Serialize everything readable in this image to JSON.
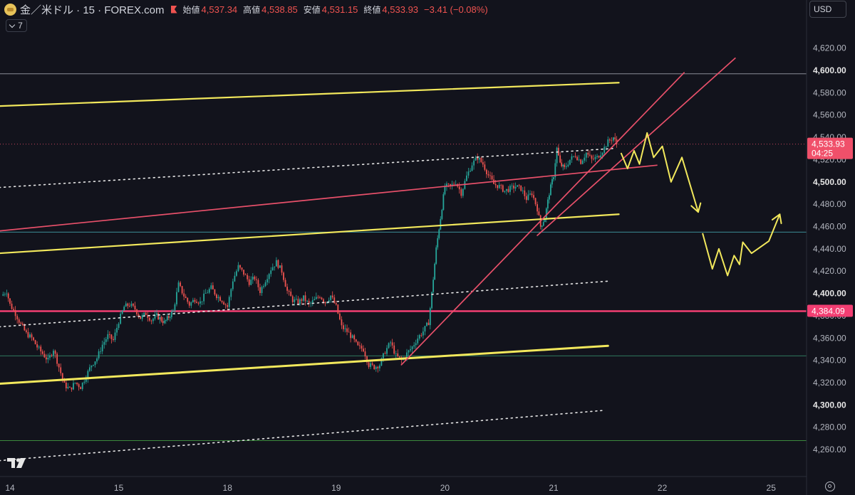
{
  "header": {
    "symbol": "金／米ドル · 15 · FOREX.com",
    "open_label": "始値",
    "open": "4,537.34",
    "high_label": "高値",
    "high": "4,538.85",
    "low_label": "安値",
    "low": "4,531.15",
    "close_label": "終値",
    "close": "4,533.93",
    "change": "−3.41 (−0.08%)"
  },
  "indicator_count": "7",
  "currency": "USD",
  "icons": {
    "logo": "gold-coin-icon",
    "flag": "flag-icon",
    "tv": "tradingview-logo-icon",
    "settings": "gear-icon",
    "collapse": "chevron-down-icon"
  },
  "colors": {
    "background": "#12131c",
    "up": "#26a69a",
    "down": "#ef5350",
    "trend_yellow": "#f2e85c",
    "trend_red": "#f0506a",
    "support_magenta": "#f23e72"
  },
  "chart_data": {
    "type": "candlestick",
    "instrument": "金／米ドル",
    "interval": "15",
    "broker": "FOREX.com",
    "ylim": [
      4246,
      4630
    ],
    "y_ticks": [
      "4,260.00",
      "4,280.00",
      "4,300.00",
      "4,320.00",
      "4,340.00",
      "4,360.00",
      "4,380.00",
      "4,400.00",
      "4,420.00",
      "4,440.00",
      "4,460.00",
      "4,480.00",
      "4,500.00",
      "4,520.00",
      "4,540.00",
      "4,560.00",
      "4,580.00",
      "4,600.00",
      "4,620.00"
    ],
    "bold_ticks": [
      "4,300.00",
      "4,400.00",
      "4,500.00",
      "4,600.00"
    ],
    "x_ticks": [
      {
        "label": "14",
        "t": 0.0
      },
      {
        "label": "15",
        "t": 1.0
      },
      {
        "label": "18",
        "t": 2.0
      },
      {
        "label": "19",
        "t": 3.0
      },
      {
        "label": "20",
        "t": 4.0
      },
      {
        "label": "21",
        "t": 5.0
      },
      {
        "label": "22",
        "t": 6.0
      },
      {
        "label": "25",
        "t": 7.0
      }
    ],
    "price_labels": [
      {
        "text": "4,533.93",
        "sub": "04:25",
        "value": 4533.93,
        "color": "#f0506a"
      },
      {
        "text": "4,384.09",
        "value": 4384.09,
        "color": "#f23e72"
      }
    ],
    "price_path": [
      [
        -0.08,
        4398
      ],
      [
        -0.03,
        4402
      ],
      [
        0.0,
        4390
      ],
      [
        0.05,
        4382
      ],
      [
        0.1,
        4372
      ],
      [
        0.15,
        4364
      ],
      [
        0.2,
        4360
      ],
      [
        0.25,
        4352
      ],
      [
        0.3,
        4346
      ],
      [
        0.35,
        4340
      ],
      [
        0.4,
        4350
      ],
      [
        0.45,
        4334
      ],
      [
        0.5,
        4318
      ],
      [
        0.55,
        4314
      ],
      [
        0.6,
        4320
      ],
      [
        0.65,
        4316
      ],
      [
        0.7,
        4326
      ],
      [
        0.75,
        4336
      ],
      [
        0.8,
        4342
      ],
      [
        0.85,
        4354
      ],
      [
        0.9,
        4362
      ],
      [
        0.95,
        4358
      ],
      [
        1.0,
        4375
      ],
      [
        1.05,
        4388
      ],
      [
        1.1,
        4390
      ],
      [
        1.15,
        4386
      ],
      [
        1.2,
        4378
      ],
      [
        1.25,
        4382
      ],
      [
        1.3,
        4376
      ],
      [
        1.35,
        4380
      ],
      [
        1.42,
        4374
      ],
      [
        1.5,
        4384
      ],
      [
        1.55,
        4408
      ],
      [
        1.6,
        4398
      ],
      [
        1.65,
        4390
      ],
      [
        1.7,
        4395
      ],
      [
        1.75,
        4392
      ],
      [
        1.8,
        4400
      ],
      [
        1.85,
        4405
      ],
      [
        1.9,
        4398
      ],
      [
        1.95,
        4394
      ],
      [
        2.0,
        4388
      ],
      [
        2.05,
        4412
      ],
      [
        2.1,
        4424
      ],
      [
        2.15,
        4418
      ],
      [
        2.2,
        4410
      ],
      [
        2.25,
        4414
      ],
      [
        2.3,
        4402
      ],
      [
        2.35,
        4412
      ],
      [
        2.4,
        4422
      ],
      [
        2.45,
        4428
      ],
      [
        2.5,
        4420
      ],
      [
        2.55,
        4402
      ],
      [
        2.6,
        4394
      ],
      [
        2.65,
        4392
      ],
      [
        2.7,
        4396
      ],
      [
        2.75,
        4390
      ],
      [
        2.8,
        4394
      ],
      [
        2.85,
        4398
      ],
      [
        2.9,
        4392
      ],
      [
        2.95,
        4398
      ],
      [
        3.0,
        4388
      ],
      [
        3.05,
        4370
      ],
      [
        3.1,
        4366
      ],
      [
        3.15,
        4360
      ],
      [
        3.2,
        4352
      ],
      [
        3.25,
        4350
      ],
      [
        3.3,
        4336
      ],
      [
        3.35,
        4334
      ],
      [
        3.4,
        4336
      ],
      [
        3.45,
        4348
      ],
      [
        3.5,
        4356
      ],
      [
        3.55,
        4344
      ],
      [
        3.6,
        4340
      ],
      [
        3.65,
        4346
      ],
      [
        3.7,
        4352
      ],
      [
        3.75,
        4360
      ],
      [
        3.8,
        4366
      ],
      [
        3.85,
        4374
      ],
      [
        3.88,
        4400
      ],
      [
        3.92,
        4440
      ],
      [
        3.96,
        4468
      ],
      [
        4.0,
        4496
      ],
      [
        4.05,
        4496
      ],
      [
        4.1,
        4500
      ],
      [
        4.15,
        4490
      ],
      [
        4.2,
        4505
      ],
      [
        4.25,
        4516
      ],
      [
        4.3,
        4522
      ],
      [
        4.35,
        4516
      ],
      [
        4.4,
        4506
      ],
      [
        4.45,
        4498
      ],
      [
        4.5,
        4496
      ],
      [
        4.55,
        4492
      ],
      [
        4.6,
        4494
      ],
      [
        4.65,
        4496
      ],
      [
        4.7,
        4494
      ],
      [
        4.75,
        4485
      ],
      [
        4.8,
        4490
      ],
      [
        4.85,
        4476
      ],
      [
        4.88,
        4460
      ],
      [
        4.92,
        4468
      ],
      [
        4.96,
        4490
      ],
      [
        5.0,
        4506
      ],
      [
        5.03,
        4530
      ],
      [
        5.06,
        4516
      ],
      [
        5.1,
        4512
      ],
      [
        5.15,
        4520
      ],
      [
        5.2,
        4524
      ],
      [
        5.25,
        4518
      ],
      [
        5.3,
        4526
      ],
      [
        5.35,
        4520
      ],
      [
        5.4,
        4522
      ],
      [
        5.45,
        4528
      ],
      [
        5.5,
        4536
      ],
      [
        5.55,
        4540
      ],
      [
        5.58,
        4533.93
      ]
    ],
    "trendlines": [
      {
        "name": "channel-upper-yellow",
        "color": "#f2e85c",
        "width": 2.2,
        "dash": "",
        "p1": [
          -0.1,
          4568
        ],
        "p2": [
          5.6,
          4589
        ]
      },
      {
        "name": "channel-mid-dotted-1",
        "color": "#e6e6e6",
        "width": 1.6,
        "dash": "2,5",
        "p1": [
          -0.1,
          4495
        ],
        "p2": [
          5.55,
          4530
        ]
      },
      {
        "name": "channel-mid-yellow",
        "color": "#f2e85c",
        "width": 2.2,
        "dash": "",
        "p1": [
          -0.1,
          4436
        ],
        "p2": [
          5.6,
          4471
        ]
      },
      {
        "name": "channel-mid-dotted-2",
        "color": "#e6e6e6",
        "width": 1.6,
        "dash": "2,5",
        "p1": [
          -0.1,
          4370
        ],
        "p2": [
          5.5,
          4411
        ]
      },
      {
        "name": "channel-lower-yellow",
        "color": "#f2e85c",
        "width": 3,
        "dash": "",
        "p1": [
          -0.1,
          4319
        ],
        "p2": [
          5.5,
          4353
        ]
      },
      {
        "name": "channel-low-dotted-3",
        "color": "#e6e6e6",
        "width": 1.6,
        "dash": "2,5",
        "p1": [
          -0.1,
          4250
        ],
        "p2": [
          5.45,
          4295
        ]
      },
      {
        "name": "red-line-mid",
        "color": "#e8506a",
        "width": 1.7,
        "dash": "",
        "p1": [
          -0.1,
          4456
        ],
        "p2": [
          5.95,
          4515
        ]
      },
      {
        "name": "red-trend-steep",
        "color": "#e8506a",
        "width": 1.7,
        "dash": "",
        "p1": [
          3.6,
          4336
        ],
        "p2": [
          6.2,
          4598
        ]
      },
      {
        "name": "red-trend-outer",
        "color": "#e8506a",
        "width": 1.7,
        "dash": "",
        "p1": [
          4.85,
          4452
        ],
        "p2": [
          6.67,
          4611
        ]
      }
    ],
    "hlines": [
      {
        "name": "hline-top-grey",
        "value": 4597,
        "color": "#8a8d96",
        "width": 1
      },
      {
        "name": "hline-teal",
        "value": 4455,
        "color": "#3c8d96",
        "width": 1
      },
      {
        "name": "hline-magenta",
        "value": 4384.09,
        "color": "#f23e72",
        "width": 2.5
      },
      {
        "name": "hline-dotted-red",
        "value": 4533.93,
        "color": "#c2435a",
        "width": 1,
        "dash": "1,3"
      },
      {
        "name": "hline-green-1",
        "value": 4344,
        "color": "#2f7a5e",
        "width": 1
      },
      {
        "name": "hline-green-2",
        "value": 4268,
        "color": "#3b8a3d",
        "width": 1
      }
    ],
    "forecast_paths": [
      {
        "name": "forecast-down",
        "color": "#f2e85c",
        "points": [
          [
            5.62,
            4526
          ],
          [
            5.68,
            4512
          ],
          [
            5.74,
            4528
          ],
          [
            5.79,
            4516
          ],
          [
            5.86,
            4544
          ],
          [
            5.92,
            4522
          ],
          [
            6.0,
            4532
          ],
          [
            6.08,
            4500
          ],
          [
            6.18,
            4522
          ],
          [
            6.33,
            4473
          ]
        ],
        "arrow": true
      },
      {
        "name": "forecast-up",
        "color": "#f2e85c",
        "points": [
          [
            6.37,
            4454
          ],
          [
            6.46,
            4422
          ],
          [
            6.52,
            4440
          ],
          [
            6.6,
            4416
          ],
          [
            6.66,
            4434
          ],
          [
            6.71,
            4426
          ],
          [
            6.74,
            4446
          ],
          [
            6.82,
            4436
          ],
          [
            6.98,
            4447
          ],
          [
            7.08,
            4471
          ]
        ],
        "arrow": true
      }
    ]
  }
}
